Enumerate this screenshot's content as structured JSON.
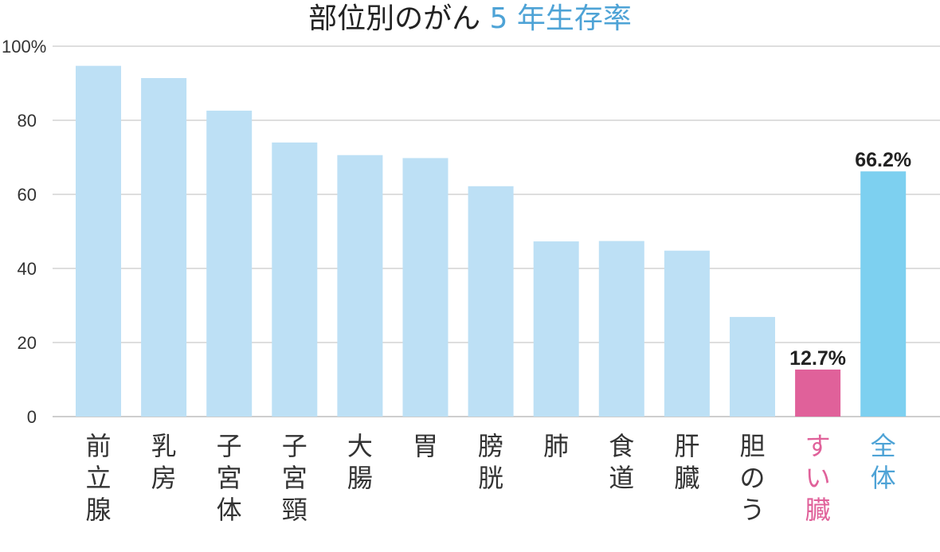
{
  "chart_data": {
    "type": "bar",
    "title": "部位別のがん",
    "title_accent": "5 年生存率",
    "categories": [
      "前立腺",
      "乳房",
      "子宮体",
      "子宮頸",
      "大腸",
      "胃",
      "膀胱",
      "肺",
      "食道",
      "肝臓",
      "胆のう",
      "すい臓",
      "全体"
    ],
    "values": [
      94.7,
      91.4,
      82.6,
      74.0,
      70.6,
      69.8,
      62.2,
      47.3,
      47.4,
      44.8,
      26.9,
      12.7,
      66.2
    ],
    "data_labels": [
      "",
      "",
      "",
      "",
      "",
      "",
      "",
      "",
      "",
      "",
      "",
      "12.7%",
      "66.2%"
    ],
    "xlabel": "",
    "ylabel": "",
    "ylim": [
      0,
      100
    ],
    "yticks": [
      "0",
      "20",
      "40",
      "60",
      "80",
      "100%"
    ],
    "grid": true,
    "legend": "none",
    "colors": {
      "default_bar": "#bde0f5",
      "highlight_bar": "#e0619a",
      "total_bar": "#7dd0f0",
      "accent_text": "#4ea3d6",
      "highlight_text": "#e0619a",
      "grid": "#bdbdbd"
    }
  }
}
